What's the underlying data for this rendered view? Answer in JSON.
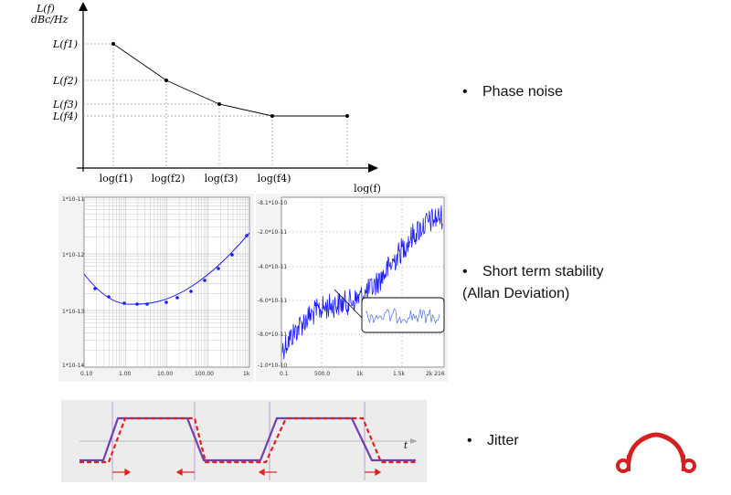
{
  "phase_noise_chart": {
    "y_axis_label_line1": "L(f)",
    "y_axis_label_line2": "dBc/Hz",
    "x_axis_label": "log(f)",
    "y_levels": [
      "L(f1)",
      "L(f2)",
      "L(f3)",
      "L(f4)"
    ],
    "x_points": [
      "log(f1)",
      "log(f2)",
      "log(f3)",
      "log(f4)"
    ]
  },
  "allan_chart": {
    "y_ticks": [
      "1*10-11",
      "1*10-12",
      "1*10-13",
      "1*10-14"
    ],
    "x_ticks": [
      "0.10",
      "1.00",
      "10.00",
      "100.00",
      "1k"
    ]
  },
  "stability_chart": {
    "y_ticks": [
      "-8.1*10-10",
      "-2.0*10-11",
      "-4.0*10-11",
      "-6.0*10-11",
      "-8.0*10-11",
      "-1.0*10-10"
    ],
    "x_ticks": [
      "0.1",
      "500.0",
      "1k",
      "1.5k",
      "2k 216"
    ]
  },
  "jitter_chart": {
    "time_label": "t"
  },
  "bullets": {
    "phase_noise": "Phase noise",
    "short_term_line1": "Short term stability",
    "short_term_line2": "(Allan Deviation)",
    "jitter": "Jitter",
    "bullet_symbol": "•"
  },
  "colors": {
    "curve_blue": "#1a1aff",
    "jitter_purple": "#7040b0",
    "jitter_red": "#e02020",
    "logo_red": "#d42020"
  }
}
